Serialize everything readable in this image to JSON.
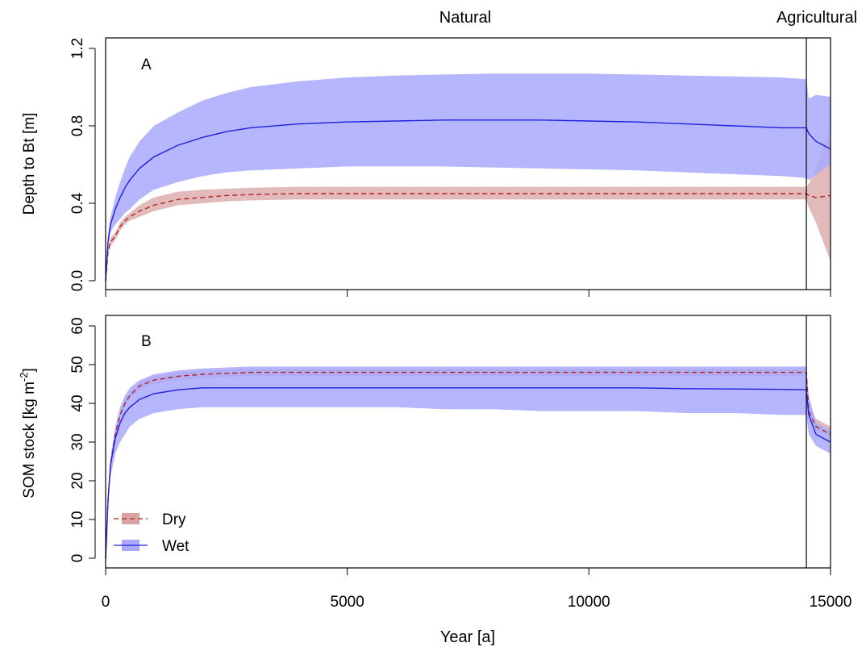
{
  "figure": {
    "header_left": "Natural",
    "header_right": "Agricultural",
    "xlabel": "Year [a]",
    "x_ticks": [
      "0",
      "5000",
      "10000",
      "15000"
    ],
    "x_tick_values": [
      0,
      5000,
      10000,
      15000
    ],
    "transition_year": 14500,
    "colors": {
      "dry_line": "#b22222",
      "dry_band": "#d9a3a3",
      "wet_line": "#1f1fe0",
      "wet_band": "#a9a9ff"
    }
  },
  "legend": {
    "entries": [
      {
        "label": "Dry",
        "series": "dry"
      },
      {
        "label": "Wet",
        "series": "wet"
      }
    ]
  },
  "chart_data": [
    {
      "type": "line",
      "panel_label": "A",
      "ylabel": "Depth to Bt [m]",
      "xlim": [
        0,
        15000
      ],
      "ylim": [
        0,
        1.2
      ],
      "y_ticks": [
        0.0,
        0.4,
        0.8,
        1.2
      ],
      "y_tick_labels": [
        "0.0",
        "0.4",
        "0.8",
        "1.2"
      ],
      "x": [
        0,
        50,
        100,
        200,
        300,
        400,
        500,
        700,
        1000,
        1500,
        2000,
        2500,
        3000,
        4000,
        5000,
        6000,
        7000,
        8000,
        9000,
        10000,
        11000,
        12000,
        13000,
        14000,
        14500,
        14550,
        14700,
        15000
      ],
      "series": [
        {
          "name": "Dry",
          "mean": [
            0,
            0.15,
            0.2,
            0.23,
            0.28,
            0.31,
            0.33,
            0.36,
            0.39,
            0.42,
            0.43,
            0.44,
            0.445,
            0.45,
            0.45,
            0.45,
            0.45,
            0.45,
            0.45,
            0.45,
            0.45,
            0.45,
            0.45,
            0.45,
            0.45,
            0.44,
            0.43,
            0.44
          ],
          "lower": [
            0,
            0.13,
            0.18,
            0.21,
            0.26,
            0.29,
            0.31,
            0.33,
            0.36,
            0.39,
            0.4,
            0.41,
            0.415,
            0.42,
            0.42,
            0.42,
            0.42,
            0.42,
            0.42,
            0.42,
            0.42,
            0.42,
            0.42,
            0.42,
            0.42,
            0.38,
            0.3,
            0.1
          ],
          "upper": [
            0,
            0.17,
            0.22,
            0.25,
            0.3,
            0.33,
            0.35,
            0.39,
            0.43,
            0.46,
            0.47,
            0.475,
            0.48,
            0.485,
            0.485,
            0.485,
            0.485,
            0.485,
            0.485,
            0.485,
            0.485,
            0.485,
            0.485,
            0.485,
            0.485,
            0.5,
            0.58,
            0.8
          ]
        },
        {
          "name": "Wet",
          "mean": [
            0,
            0.2,
            0.29,
            0.37,
            0.43,
            0.48,
            0.52,
            0.58,
            0.64,
            0.7,
            0.74,
            0.77,
            0.79,
            0.81,
            0.82,
            0.825,
            0.83,
            0.83,
            0.83,
            0.825,
            0.82,
            0.81,
            0.8,
            0.79,
            0.79,
            0.76,
            0.72,
            0.68
          ],
          "lower": [
            0,
            0.18,
            0.25,
            0.29,
            0.32,
            0.35,
            0.37,
            0.42,
            0.47,
            0.51,
            0.54,
            0.56,
            0.57,
            0.58,
            0.59,
            0.59,
            0.59,
            0.585,
            0.58,
            0.575,
            0.57,
            0.56,
            0.55,
            0.54,
            0.53,
            0.52,
            0.55,
            0.6
          ],
          "upper": [
            0,
            0.24,
            0.33,
            0.43,
            0.51,
            0.58,
            0.64,
            0.72,
            0.8,
            0.87,
            0.93,
            0.97,
            1.0,
            1.03,
            1.05,
            1.06,
            1.065,
            1.07,
            1.07,
            1.07,
            1.065,
            1.06,
            1.055,
            1.05,
            1.04,
            0.94,
            0.96,
            0.95
          ]
        }
      ]
    },
    {
      "type": "line",
      "panel_label": "B",
      "ylabel": "SOM stock [kg m",
      "ylabel_superscript": "-2",
      "ylabel_suffix": "]",
      "xlim": [
        0,
        15000
      ],
      "ylim": [
        0,
        60
      ],
      "y_ticks": [
        0,
        10,
        20,
        30,
        40,
        50,
        60
      ],
      "y_tick_labels": [
        "0",
        "10",
        "20",
        "30",
        "40",
        "50",
        "60"
      ],
      "x": [
        0,
        50,
        100,
        200,
        300,
        400,
        500,
        700,
        1000,
        1500,
        2000,
        3000,
        4000,
        5000,
        6000,
        7000,
        8000,
        9000,
        10000,
        11000,
        12000,
        13000,
        14000,
        14500,
        14550,
        14700,
        15000
      ],
      "series": [
        {
          "name": "Dry",
          "mean": [
            0,
            15,
            24,
            32,
            37,
            40,
            42,
            44.5,
            46,
            47,
            47.5,
            48,
            48,
            48,
            48,
            48,
            48,
            48,
            48,
            48,
            48,
            48,
            48,
            48,
            38,
            34,
            32
          ],
          "lower": [
            0,
            14,
            23,
            31,
            36,
            39,
            41,
            43.5,
            45,
            46,
            46.5,
            47,
            47,
            47,
            47,
            47,
            47,
            47,
            47,
            47,
            47,
            47,
            47,
            47,
            37,
            33,
            31
          ],
          "upper": [
            0,
            16,
            25,
            33,
            38,
            41,
            43,
            45.5,
            47,
            48,
            48.5,
            49,
            49,
            49,
            49,
            49,
            49,
            49,
            49,
            49,
            49,
            49,
            49,
            49,
            40,
            36,
            34
          ]
        },
        {
          "name": "Wet",
          "mean": [
            0,
            15,
            24,
            31,
            35,
            37.5,
            39,
            41,
            42.5,
            43.5,
            44,
            44,
            44,
            44,
            44,
            44,
            44,
            44,
            44,
            44,
            43.8,
            43.7,
            43.6,
            43.5,
            37,
            32,
            30
          ],
          "lower": [
            0,
            14,
            21,
            27,
            30,
            32,
            34,
            36,
            37.5,
            38.5,
            39,
            39,
            39,
            39,
            39,
            38.5,
            38.5,
            38,
            38,
            38,
            37.5,
            37.5,
            37,
            37,
            32,
            29,
            27
          ],
          "upper": [
            0,
            17,
            26,
            34,
            39,
            42,
            44,
            46,
            47.5,
            48.5,
            49,
            49.5,
            49.5,
            49.5,
            49.5,
            49.5,
            49.5,
            49.5,
            49.5,
            49.5,
            49.5,
            49.5,
            49.5,
            49.5,
            42,
            35,
            33
          ]
        }
      ]
    }
  ]
}
